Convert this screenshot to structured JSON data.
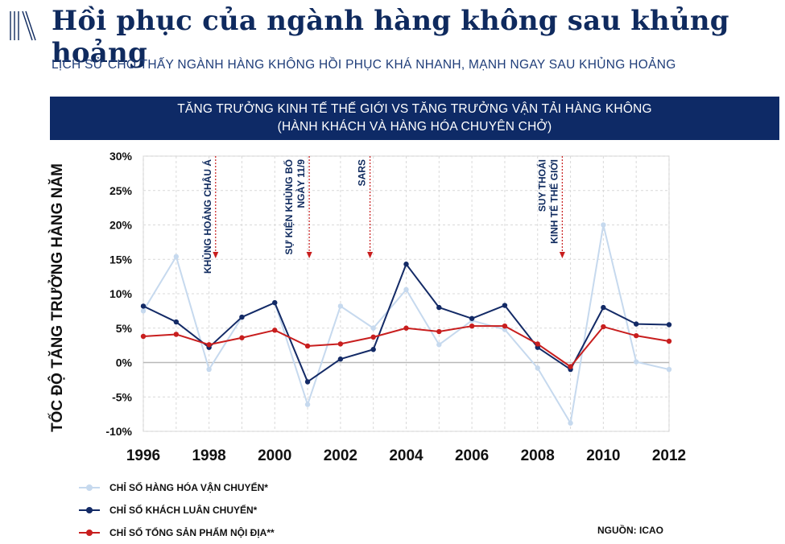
{
  "header": {
    "title": "Hồi phục của ngành hàng không sau khủng hoảng",
    "subtitle": "LỊCH SỬ CHO THẤY NGÀNH HÀNG KHÔNG HỒI PHỤC KHÁ NHANH, MẠNH NGAY SAU KHỦNG HOẢNG",
    "logo_icon": "vertical-lines-logo-icon"
  },
  "chart_box": {
    "title_line1": "TĂNG TRƯỞNG KINH TẾ THẾ GIỚI VS TĂNG TRƯỞNG VẬN TẢI HÀNG KHÔNG",
    "title_line2": "(HÀNH KHÁCH VÀ HÀNG HÓA CHUYÊN CHỞ)",
    "banner_color": "#0e2a66"
  },
  "source": "NGUỒN: ICAO",
  "chart_data": {
    "type": "line",
    "ylabel": "TỐC ĐỘ TĂNG TRƯỞNG HÀNG NĂM",
    "xlabel": "",
    "x": [
      1996,
      1997,
      1998,
      1999,
      2000,
      2001,
      2002,
      2003,
      2004,
      2005,
      2006,
      2007,
      2008,
      2009,
      2010,
      2011,
      2012
    ],
    "xticks": [
      1996,
      1998,
      2000,
      2002,
      2004,
      2006,
      2008,
      2010,
      2012
    ],
    "xtick_labels": [
      "1996",
      "1998",
      "2000",
      "2002",
      "2004",
      "2006",
      "2008",
      "2010",
      "2012"
    ],
    "xlim": [
      1996,
      2012
    ],
    "ylim": [
      -10,
      30
    ],
    "yticks": [
      -10,
      -5,
      0,
      5,
      10,
      15,
      20,
      25,
      30
    ],
    "ytick_labels": [
      "-10%",
      "-5%",
      "0%",
      "5%",
      "10%",
      "15%",
      "20%",
      "25%",
      "30%"
    ],
    "grid": true,
    "legend_position": "bottom-left",
    "series": [
      {
        "name": "CHỈ SỐ HÀNG HÓA VẬN CHUYỂN*",
        "color": "#c6d9ee",
        "values": [
          7.5,
          15.4,
          -1.0,
          6.6,
          8.7,
          -6.1,
          8.2,
          5.0,
          10.6,
          2.6,
          6.1,
          4.8,
          -0.8,
          -8.8,
          20.0,
          0.1,
          -1.0
        ]
      },
      {
        "name": "CHỈ SỐ KHÁCH LUÂN CHUYỂN*",
        "color": "#132a66",
        "values": [
          8.2,
          5.9,
          2.2,
          6.6,
          8.7,
          -2.8,
          0.5,
          1.9,
          14.3,
          8.0,
          6.4,
          8.3,
          2.2,
          -1.0,
          8.0,
          5.6,
          5.5
        ]
      },
      {
        "name": "CHỈ SỐ TỔNG SẢN PHẨM NỘI ĐỊA**",
        "color": "#c81e1e",
        "values": [
          3.8,
          4.1,
          2.6,
          3.6,
          4.7,
          2.4,
          2.7,
          3.7,
          5.0,
          4.5,
          5.3,
          5.3,
          2.7,
          -0.6,
          5.2,
          3.9,
          3.1
        ]
      }
    ],
    "annotations": [
      {
        "lines": [
          "KHỦNG HOẢNG CHÂU Á"
        ],
        "x": 1998.2
      },
      {
        "lines": [
          "SỰ KIỆN KHỦNG BỐ",
          "NGÀY 11/9"
        ],
        "x": 2001.05
      },
      {
        "lines": [
          "SARS"
        ],
        "x": 2002.9
      },
      {
        "lines": [
          "SUY THOÁI",
          "KINH TẾ THẾ GIỚI"
        ],
        "x": 2008.75
      }
    ]
  }
}
